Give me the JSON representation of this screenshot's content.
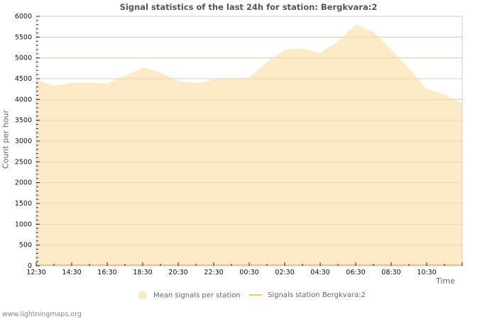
{
  "chart_data": {
    "type": "area",
    "title": "Signal statistics of the last 24h for station: Bergkvara:2",
    "xlabel": "Time",
    "ylabel": "Count per hour",
    "ylim": [
      0,
      6000
    ],
    "yticks": [
      0,
      500,
      1000,
      1500,
      2000,
      2500,
      3000,
      3500,
      4000,
      4500,
      5000,
      5500,
      6000
    ],
    "xticks": [
      "12:30",
      "14:30",
      "16:30",
      "18:30",
      "20:30",
      "22:30",
      "00:30",
      "02:30",
      "04:30",
      "06:30",
      "08:30",
      "10:30"
    ],
    "grid": true,
    "legend_position": "bottom",
    "x": [
      "12:30",
      "13:30",
      "14:30",
      "15:30",
      "16:30",
      "17:30",
      "18:30",
      "19:30",
      "20:30",
      "21:30",
      "22:30",
      "23:30",
      "00:30",
      "01:30",
      "02:30",
      "03:30",
      "04:30",
      "05:30",
      "06:30",
      "07:30",
      "08:30",
      "09:30",
      "10:30",
      "11:30",
      "12:30"
    ],
    "series": [
      {
        "name": "Mean signals per station",
        "type": "area",
        "color": "#fdebc8",
        "values": [
          4480,
          4330,
          4400,
          4410,
          4380,
          4570,
          4770,
          4650,
          4440,
          4390,
          4480,
          4500,
          4530,
          4900,
          5200,
          5230,
          5120,
          5400,
          5800,
          5630,
          5200,
          4750,
          4250,
          4120,
          3900
        ]
      },
      {
        "name": "Signals station Bergkvara:2",
        "type": "line",
        "color": "#f5c842",
        "values": [
          0,
          0,
          0,
          0,
          0,
          0,
          0,
          0,
          0,
          0,
          0,
          0,
          0,
          0,
          0,
          0,
          0,
          0,
          0,
          0,
          0,
          0,
          0,
          0,
          0
        ]
      }
    ]
  },
  "page": {
    "title": "Signal statistics of the last 24h for station: Bergkvara:2",
    "ylabel": "Count per hour",
    "xlabel": "Time",
    "legend": {
      "area_label": "Mean signals per station",
      "line_label": "Signals station Bergkvara:2"
    },
    "footer": "www.lightningmaps.org"
  }
}
